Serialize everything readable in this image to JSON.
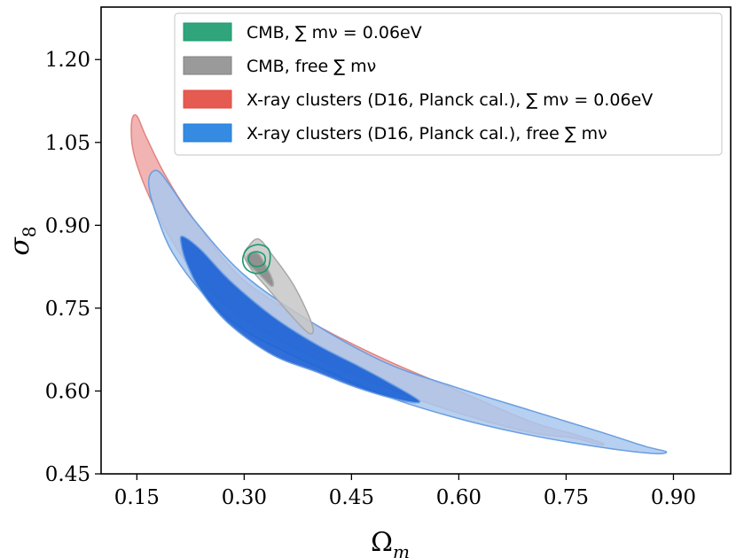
{
  "chart_data": {
    "type": "contour",
    "xlabel": "Ω",
    "xlabel_sub": "m",
    "ylabel": "σ",
    "ylabel_sub": "8",
    "xlim": [
      0.1,
      0.98
    ],
    "ylim": [
      0.45,
      1.295
    ],
    "xticks": [
      "0.15",
      "0.30",
      "0.45",
      "0.60",
      "0.75",
      "0.90"
    ],
    "xtick_values": [
      0.15,
      0.3,
      0.45,
      0.6,
      0.75,
      0.9
    ],
    "yticks": [
      "0.45",
      "0.60",
      "0.75",
      "0.90",
      "1.05",
      "1.20"
    ],
    "ytick_values": [
      0.45,
      0.6,
      0.75,
      0.9,
      1.05,
      1.2
    ],
    "legend_position": "top-right",
    "legend": [
      {
        "text": "CMB, ∑ mν = 0.06eV",
        "color": "#1a9a6c"
      },
      {
        "text": "CMB, free ∑ mν",
        "color": "#808080"
      },
      {
        "text": "X-ray clusters (D16, Planck cal.), ∑ mν = 0.06eV",
        "color": "#e2493f"
      },
      {
        "text": "X-ray clusters (D16, Planck cal.), free ∑ mν",
        "color": "#1f7ddf"
      }
    ],
    "series": [
      {
        "name": "X-ray clusters (D16, Planck cal.), ∑ mν = 0.06eV",
        "fill": "#f0a7a4",
        "stroke": "#e08480",
        "contours": [
          {
            "level": "95%",
            "points": [
              [
                0.143,
                1.09
              ],
              [
                0.15,
                1.098
              ],
              [
                0.163,
                1.06
              ],
              [
                0.19,
                0.99
              ],
              [
                0.23,
                0.91
              ],
              [
                0.3,
                0.8
              ],
              [
                0.4,
                0.72
              ],
              [
                0.5,
                0.655
              ],
              [
                0.6,
                0.6
              ],
              [
                0.7,
                0.545
              ],
              [
                0.76,
                0.522
              ],
              [
                0.8,
                0.506
              ],
              [
                0.795,
                0.503
              ],
              [
                0.76,
                0.515
              ],
              [
                0.7,
                0.525
              ],
              [
                0.6,
                0.56
              ],
              [
                0.5,
                0.605
              ],
              [
                0.4,
                0.66
              ],
              [
                0.3,
                0.73
              ],
              [
                0.24,
                0.8
              ],
              [
                0.2,
                0.87
              ],
              [
                0.168,
                0.95
              ],
              [
                0.15,
                1.01
              ],
              [
                0.143,
                1.05
              ]
            ]
          }
        ]
      },
      {
        "name": "X-ray clusters (D16, Planck cal.), free ∑ mν",
        "fill": "#a9c8ee",
        "stroke": "#6a9ee0",
        "contours": [
          {
            "level": "95%",
            "points": [
              [
                0.168,
                0.99
              ],
              [
                0.18,
                0.998
              ],
              [
                0.2,
                0.965
              ],
              [
                0.23,
                0.91
              ],
              [
                0.3,
                0.81
              ],
              [
                0.4,
                0.72
              ],
              [
                0.5,
                0.65
              ],
              [
                0.6,
                0.605
              ],
              [
                0.7,
                0.565
              ],
              [
                0.8,
                0.525
              ],
              [
                0.86,
                0.5
              ],
              [
                0.89,
                0.49
              ],
              [
                0.87,
                0.487
              ],
              [
                0.8,
                0.498
              ],
              [
                0.7,
                0.52
              ],
              [
                0.6,
                0.55
              ],
              [
                0.5,
                0.59
              ],
              [
                0.4,
                0.645
              ],
              [
                0.3,
                0.71
              ],
              [
                0.24,
                0.78
              ],
              [
                0.2,
                0.85
              ],
              [
                0.18,
                0.91
              ],
              [
                0.168,
                0.96
              ]
            ]
          },
          {
            "level": "68%",
            "points": [
              [
                0.214,
                0.88
              ],
              [
                0.24,
                0.855
              ],
              [
                0.28,
                0.8
              ],
              [
                0.34,
                0.735
              ],
              [
                0.4,
                0.685
              ],
              [
                0.46,
                0.645
              ],
              [
                0.5,
                0.617
              ],
              [
                0.545,
                0.582
              ],
              [
                0.52,
                0.583
              ],
              [
                0.46,
                0.605
              ],
              [
                0.4,
                0.635
              ],
              [
                0.34,
                0.665
              ],
              [
                0.28,
                0.72
              ],
              [
                0.24,
                0.78
              ],
              [
                0.22,
                0.83
              ],
              [
                0.212,
                0.865
              ]
            ]
          }
        ]
      },
      {
        "name": "CMB, free ∑ mν",
        "fill": "#c7c7c7",
        "stroke": "#a8a8a8",
        "contours": [
          {
            "level": "95%",
            "points": [
              [
                0.305,
                0.86
              ],
              [
                0.32,
                0.875
              ],
              [
                0.34,
                0.845
              ],
              [
                0.37,
                0.79
              ],
              [
                0.395,
                0.72
              ],
              [
                0.39,
                0.705
              ],
              [
                0.36,
                0.745
              ],
              [
                0.33,
                0.79
              ],
              [
                0.31,
                0.82
              ],
              [
                0.3,
                0.845
              ]
            ]
          },
          {
            "level": "68%",
            "points": [
              [
                0.305,
                0.846
              ],
              [
                0.318,
                0.85
              ],
              [
                0.328,
                0.832
              ],
              [
                0.34,
                0.8
              ],
              [
                0.338,
                0.79
              ],
              [
                0.322,
                0.81
              ],
              [
                0.306,
                0.83
              ]
            ]
          }
        ]
      },
      {
        "name": "CMB, ∑ mν = 0.06eV",
        "fill": "none",
        "stroke": "#1a9a6c",
        "contours": [
          {
            "level": "95%",
            "points": [
              [
                0.32,
                0.865
              ],
              [
                0.334,
                0.857
              ],
              [
                0.336,
                0.835
              ],
              [
                0.33,
                0.818
              ],
              [
                0.315,
                0.813
              ],
              [
                0.302,
                0.822
              ],
              [
                0.298,
                0.84
              ],
              [
                0.305,
                0.858
              ]
            ]
          },
          {
            "level": "68%",
            "points": [
              [
                0.319,
                0.852
              ],
              [
                0.328,
                0.846
              ],
              [
                0.329,
                0.833
              ],
              [
                0.322,
                0.826
              ],
              [
                0.312,
                0.827
              ],
              [
                0.306,
                0.837
              ],
              [
                0.309,
                0.849
              ]
            ]
          }
        ]
      }
    ]
  }
}
